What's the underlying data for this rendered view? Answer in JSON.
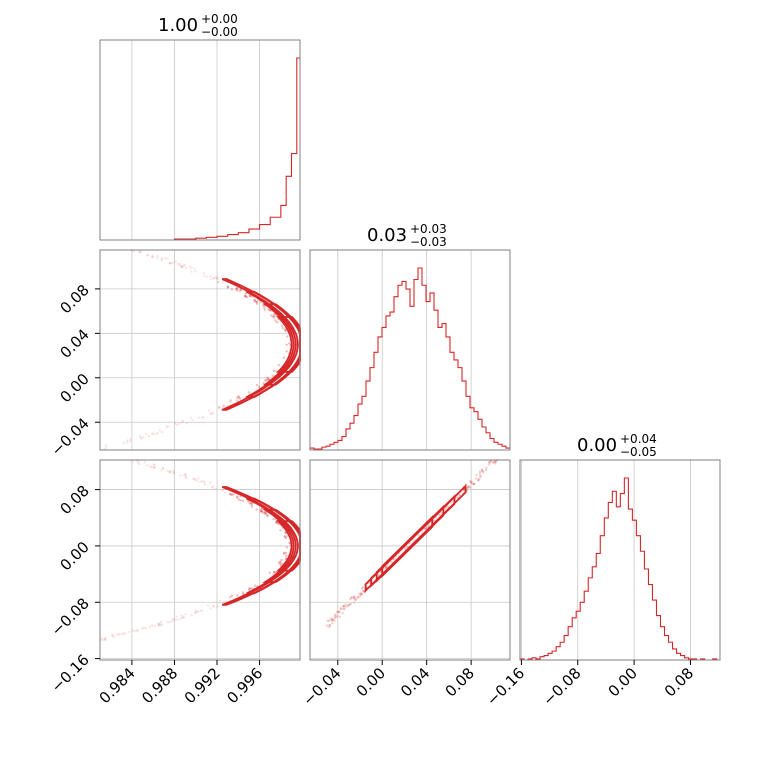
{
  "chart_data": {
    "type": "corner",
    "color": "#d62728",
    "grid": true,
    "parameters": [
      {
        "range": [
          0.981,
          0.9998
        ],
        "ticks": [
          "0.984",
          "0.988",
          "0.992",
          "0.996"
        ],
        "tick_values": [
          0.984,
          0.988,
          0.992,
          0.996
        ],
        "title": {
          "value": "1.00",
          "plus": "+0.00",
          "minus": "−0.00"
        }
      },
      {
        "range": [
          -0.065,
          0.115
        ],
        "ticks": [
          "−0.04",
          "0.00",
          "0.04",
          "0.08"
        ],
        "tick_values": [
          -0.04,
          0.0,
          0.04,
          0.08
        ],
        "title": {
          "value": "0.03",
          "plus": "+0.03",
          "minus": "−0.03"
        }
      },
      {
        "range": [
          -0.162,
          0.122
        ],
        "ticks": [
          "−0.16",
          "−0.08",
          "0.00",
          "0.08"
        ],
        "tick_values": [
          -0.16,
          -0.08,
          0.0,
          0.08
        ],
        "title": {
          "value": "0.00",
          "plus": "+0.04",
          "minus": "−0.05"
        }
      }
    ],
    "histograms": [
      {
        "param": 0,
        "bin_edges": [
          0.981,
          0.982,
          0.983,
          0.984,
          0.985,
          0.986,
          0.987,
          0.988,
          0.989,
          0.99,
          0.991,
          0.992,
          0.993,
          0.994,
          0.995,
          0.996,
          0.997,
          0.998,
          0.9985,
          0.999,
          0.9995,
          0.9998
        ],
        "counts": [
          0,
          0,
          0,
          0,
          0,
          0,
          0,
          1,
          1,
          2,
          3,
          4,
          6,
          8,
          12,
          17,
          25,
          38,
          70,
          95,
          200
        ]
      },
      {
        "param": 1,
        "bin_edges_start": -0.065,
        "bin_width": 0.0036,
        "counts": [
          2,
          1,
          1,
          3,
          4,
          6,
          8,
          10,
          14,
          22,
          28,
          36,
          48,
          56,
          72,
          86,
          102,
          118,
          128,
          140,
          144,
          160,
          172,
          176,
          168,
          150,
          178,
          190,
          172,
          155,
          164,
          146,
          128,
          132,
          118,
          102,
          94,
          86,
          72,
          56,
          44,
          40,
          32,
          24,
          18,
          12,
          8,
          6,
          4,
          2
        ]
      },
      {
        "param": 2,
        "bin_edges_start": -0.162,
        "bin_width": 0.0057,
        "counts": [
          1,
          0,
          1,
          2,
          1,
          3,
          4,
          6,
          8,
          12,
          16,
          22,
          30,
          38,
          44,
          52,
          62,
          74,
          84,
          96,
          112,
          128,
          142,
          152,
          138,
          150,
          164,
          136,
          126,
          112,
          98,
          82,
          68,
          54,
          40,
          30,
          22,
          16,
          10,
          6,
          4,
          2,
          1,
          1,
          0,
          1,
          0,
          0,
          1,
          0
        ]
      }
    ],
    "pair_panels": [
      {
        "x_param": 0,
        "y_param": 1
      },
      {
        "x_param": 0,
        "y_param": 2
      },
      {
        "x_param": 1,
        "y_param": 2
      }
    ]
  }
}
